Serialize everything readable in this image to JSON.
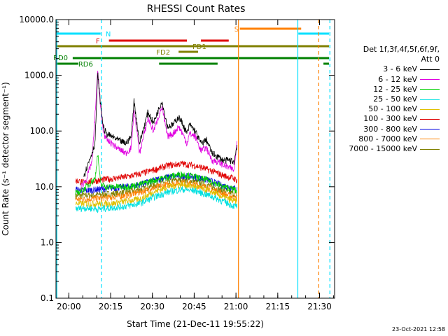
{
  "chart_data": {
    "type": "line",
    "title": "RHESSI Count Rates",
    "xlabel": "Start Time (21-Dec-11 19:55:22)",
    "ylabel": "Count Rate (s⁻¹ detector segment⁻¹)",
    "yscale": "log",
    "ylim": [
      0.1,
      10000
    ],
    "xlim_minutes": [
      0,
      100
    ],
    "x_tick_labels": [
      "20:00",
      "20:15",
      "20:30",
      "20:45",
      "21:00",
      "21:15",
      "21:30"
    ],
    "x_tick_minutes": [
      4.6,
      19.6,
      34.6,
      49.6,
      64.6,
      79.6,
      94.6
    ],
    "y_tick_labels": [
      "0.1",
      "1.0",
      "10.0",
      "100.0",
      "1000.0",
      "10000.0"
    ],
    "y_tick_values": [
      0.1,
      1,
      10,
      100,
      1000,
      10000
    ],
    "legend_header": [
      "Det 1f,3f,4f,5f,6f,9f,",
      "Att 0"
    ],
    "series": [
      {
        "name": "3 - 6 keV",
        "color": "#000000",
        "x": [
          10,
          12,
          14,
          15,
          16,
          17,
          18,
          20,
          22,
          25,
          27,
          28,
          30,
          33,
          35,
          38,
          40,
          42,
          44,
          45,
          47,
          48,
          50,
          52,
          54,
          56,
          58,
          60,
          62,
          64,
          65
        ],
        "y": [
          16,
          30,
          60,
          1100,
          300,
          120,
          90,
          80,
          70,
          60,
          80,
          350,
          60,
          220,
          140,
          350,
          120,
          130,
          180,
          150,
          90,
          130,
          100,
          60,
          70,
          40,
          35,
          30,
          30,
          28,
          60
        ]
      },
      {
        "name": "6 - 12 keV",
        "color": "#e000e0",
        "x": [
          9,
          11,
          13,
          15,
          16,
          17,
          18,
          20,
          22,
          25,
          27,
          28,
          30,
          33,
          35,
          38,
          40,
          42,
          44,
          45,
          47,
          48,
          50,
          52,
          54,
          56,
          58,
          60,
          62,
          64,
          65
        ],
        "y": [
          10,
          14,
          30,
          1200,
          250,
          100,
          70,
          60,
          50,
          40,
          50,
          250,
          40,
          170,
          100,
          270,
          80,
          90,
          120,
          100,
          60,
          90,
          80,
          45,
          50,
          30,
          28,
          25,
          22,
          20,
          80
        ]
      },
      {
        "name": "12 - 25 keV",
        "color": "#00d000",
        "x": [
          7,
          10,
          14,
          15,
          16,
          18,
          20,
          25,
          30,
          35,
          40,
          45,
          50,
          55,
          60,
          64,
          65
        ],
        "y": [
          7.5,
          9,
          14,
          40,
          11,
          10,
          10,
          10,
          11,
          13,
          15,
          17,
          15,
          13,
          10,
          9,
          8
        ]
      },
      {
        "name": "25 - 50 keV",
        "color": "#00e0e0",
        "x": [
          7,
          10,
          15,
          20,
          25,
          30,
          35,
          40,
          45,
          50,
          55,
          60,
          64,
          65
        ],
        "y": [
          4,
          4.2,
          4,
          4.2,
          4.5,
          5,
          6.5,
          8,
          9,
          8.5,
          7,
          5.5,
          4.5,
          4.5
        ]
      },
      {
        "name": "50 - 100 keV",
        "color": "#e0c000",
        "x": [
          7,
          10,
          15,
          20,
          25,
          30,
          35,
          40,
          45,
          50,
          55,
          60,
          64,
          65
        ],
        "y": [
          5,
          5,
          5,
          5,
          5.5,
          6,
          8,
          10,
          11,
          10,
          8.5,
          6.5,
          5.5,
          5.5
        ]
      },
      {
        "name": "100 - 300 keV",
        "color": "#e00000",
        "x": [
          7,
          10,
          15,
          20,
          25,
          30,
          35,
          40,
          45,
          50,
          55,
          60,
          64,
          65
        ],
        "y": [
          13,
          12,
          13,
          14,
          15,
          17,
          20,
          24,
          26,
          24,
          20,
          16,
          14,
          13
        ]
      },
      {
        "name": "300 - 800 keV",
        "color": "#0000e0",
        "x": [
          7,
          10,
          15,
          20,
          25,
          30,
          35,
          40,
          45,
          50,
          55,
          60,
          64,
          65
        ],
        "y": [
          9,
          8.5,
          9,
          9.5,
          10,
          11,
          13,
          15,
          16,
          15,
          13,
          10.5,
          9.5,
          9
        ]
      },
      {
        "name": "800 - 7000 keV",
        "color": "#ff8000",
        "x": [
          7,
          10,
          15,
          20,
          25,
          30,
          35,
          40,
          45,
          50,
          55,
          60,
          64,
          65
        ],
        "y": [
          6,
          6,
          6.2,
          6.5,
          7,
          8,
          9.5,
          11,
          12,
          11,
          9.5,
          7.5,
          6.5,
          6
        ]
      },
      {
        "name": "7000 - 15000 keV",
        "color": "#808000",
        "x": [
          7,
          10,
          15,
          20,
          25,
          30,
          35,
          40,
          45,
          50,
          55,
          60,
          64,
          65
        ],
        "y": [
          7,
          7,
          7.2,
          7.5,
          8,
          9,
          10.5,
          12.5,
          13.5,
          12.5,
          10.5,
          8.5,
          7.5,
          7
        ]
      }
    ],
    "flag_bars": [
      {
        "label": "N",
        "color": "#00e0ff",
        "segments": [
          [
            0,
            16
          ]
        ],
        "y_row": "N"
      },
      {
        "label": "",
        "color": "#00e0ff",
        "segments": [
          [
            87,
            98
          ]
        ],
        "y_row": "N"
      },
      {
        "label": "S",
        "color": "#ff8000",
        "segments": [
          [
            66,
            88
          ]
        ],
        "y_row": "S"
      },
      {
        "label": "F",
        "color": "#e00000",
        "segments": [
          [
            19,
            47
          ],
          [
            52,
            62
          ]
        ],
        "y_row": "F"
      },
      {
        "label": "FD1",
        "color": "#808000",
        "segments": [
          [
            0,
            98
          ]
        ],
        "y_row": "FD1"
      },
      {
        "label": "FD2",
        "color": "#808000",
        "segments": [
          [
            44,
            51
          ]
        ],
        "y_row": "FD2"
      },
      {
        "label": "RD0",
        "color": "#008000",
        "segments": [
          [
            6,
            98
          ]
        ],
        "y_row": "RD0"
      },
      {
        "label": "RD6",
        "color": "#008000",
        "segments": [
          [
            0,
            8
          ],
          [
            37,
            58
          ],
          [
            96,
            98
          ]
        ],
        "y_row": "RD6"
      }
    ],
    "vertical_lines": [
      {
        "x_minutes": 0.3,
        "color": "#00e0ff",
        "style": "solid"
      },
      {
        "x_minutes": 16.3,
        "color": "#00e0ff",
        "style": "dashed"
      },
      {
        "x_minutes": 65.5,
        "color": "#ff8000",
        "style": "solid"
      },
      {
        "x_minutes": 86.8,
        "color": "#00e0ff",
        "style": "solid"
      },
      {
        "x_minutes": 94.3,
        "color": "#ff8000",
        "style": "dashed"
      },
      {
        "x_minutes": 98.3,
        "color": "#00e0ff",
        "style": "dashed"
      }
    ],
    "timestamp": "23-Oct-2021 12:58"
  }
}
